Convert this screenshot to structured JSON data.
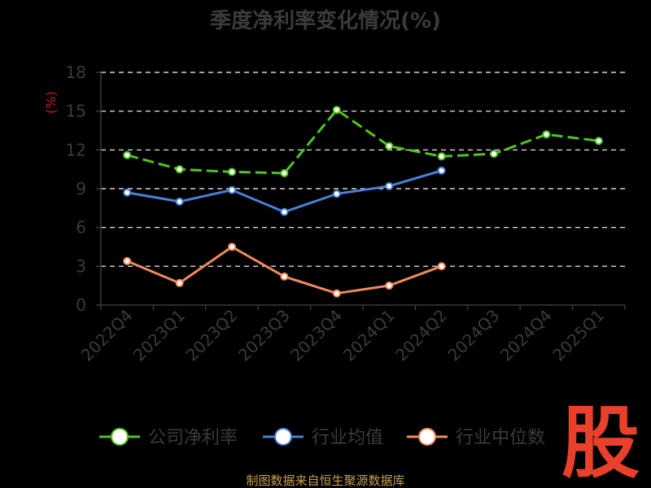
{
  "chart_data": {
    "type": "line",
    "title": "季度净利率变化情况(%)",
    "ylabel": "(%)",
    "xlabel": "",
    "ylim": [
      0,
      18
    ],
    "yticks": [
      0,
      3,
      6,
      9,
      12,
      15,
      18
    ],
    "grid": true,
    "legend_position": "bottom",
    "categories": [
      "2022Q4",
      "2023Q1",
      "2023Q2",
      "2023Q3",
      "2023Q4",
      "2024Q1",
      "2024Q2",
      "2024Q3",
      "2024Q4",
      "2025Q1"
    ],
    "series": [
      {
        "name": "公司净利率",
        "color": "#52c41a",
        "style": "dashed",
        "values": [
          11.6,
          10.5,
          10.3,
          10.2,
          15.1,
          12.3,
          11.5,
          11.7,
          13.2,
          12.7
        ]
      },
      {
        "name": "行业均值",
        "color": "#4a7fd6",
        "style": "solid",
        "values": [
          8.7,
          8.0,
          8.9,
          7.2,
          8.6,
          9.2,
          10.4,
          null,
          null,
          null
        ]
      },
      {
        "name": "行业中位数",
        "color": "#f08a5d",
        "style": "solid",
        "values": [
          3.4,
          1.7,
          4.5,
          2.2,
          0.9,
          1.5,
          3.0,
          null,
          null,
          null
        ]
      }
    ]
  },
  "footer": {
    "source": "制图数据来自恒生聚源数据库",
    "brand": "股"
  }
}
